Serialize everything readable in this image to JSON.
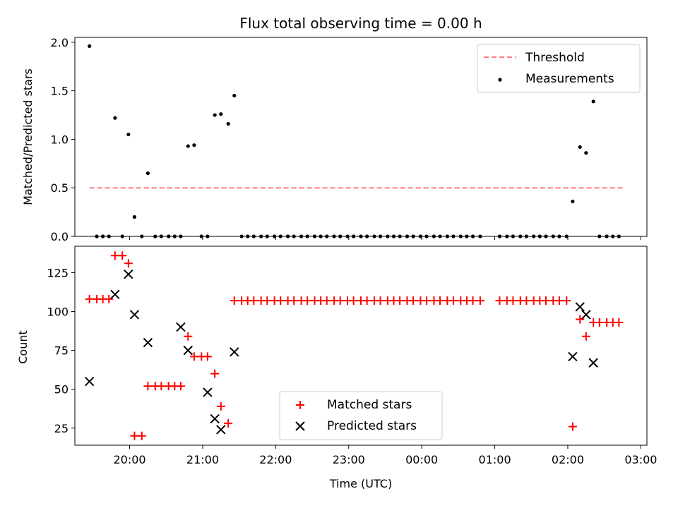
{
  "chart_data": [
    {
      "type": "scatter",
      "title": "Flux total observing time = 0.00 h",
      "ylabel": "Matched/Predicted stars",
      "xlabel": "",
      "ylim": [
        0,
        2.05
      ],
      "yticks": [
        0.0,
        0.5,
        1.0,
        1.5,
        2.0
      ],
      "ytick_labels": [
        "0.0",
        "0.5",
        "1.0",
        "1.5",
        "2.0"
      ],
      "threshold": {
        "label": "Threshold",
        "value": 0.5,
        "x_start": "19:27",
        "x_end": "02:45",
        "color": "#ff7f7f"
      },
      "legend_position": "upper-right",
      "series": [
        {
          "name": "Measurements",
          "color": "#000000",
          "x": [
            "19:27",
            "19:33",
            "19:38",
            "19:43",
            "19:48",
            "19:54",
            "19:59",
            "20:04",
            "20:10",
            "20:15",
            "20:21",
            "20:26",
            "20:32",
            "20:37",
            "20:42",
            "20:48",
            "20:53",
            "20:59",
            "21:04",
            "21:10",
            "21:15",
            "21:21",
            "21:26",
            "21:32",
            "21:37",
            "21:42",
            "21:48",
            "21:53",
            "21:59",
            "22:04",
            "22:10",
            "22:15",
            "22:21",
            "22:26",
            "22:32",
            "22:37",
            "22:42",
            "22:48",
            "22:53",
            "22:59",
            "23:04",
            "23:10",
            "23:15",
            "23:21",
            "23:26",
            "23:32",
            "23:37",
            "23:42",
            "23:48",
            "23:53",
            "23:59",
            "00:04",
            "00:10",
            "00:15",
            "00:21",
            "00:26",
            "00:32",
            "00:37",
            "00:42",
            "00:48",
            "01:04",
            "01:10",
            "01:15",
            "01:21",
            "01:26",
            "01:32",
            "01:37",
            "01:42",
            "01:48",
            "01:53",
            "01:59",
            "02:04",
            "02:10",
            "02:15",
            "02:21",
            "02:26",
            "02:32",
            "02:37",
            "02:42"
          ],
          "y": [
            1.96,
            0,
            0,
            0,
            1.22,
            0,
            1.05,
            0.2,
            0,
            0.65,
            0,
            0,
            0,
            0,
            0,
            0.93,
            0.94,
            0,
            0,
            1.25,
            1.26,
            1.16,
            1.45,
            0,
            0,
            0,
            0,
            0,
            0,
            0,
            0,
            0,
            0,
            0,
            0,
            0,
            0,
            0,
            0,
            0,
            0,
            0,
            0,
            0,
            0,
            0,
            0,
            0,
            0,
            0,
            0,
            0,
            0,
            0,
            0,
            0,
            0,
            0,
            0,
            0,
            0,
            0,
            0,
            0,
            0,
            0,
            0,
            0,
            0,
            0,
            0,
            0.36,
            0.92,
            0.86,
            1.39,
            0,
            0,
            0,
            0
          ]
        }
      ]
    },
    {
      "type": "scatter",
      "title": "",
      "ylabel": "Count",
      "xlabel": "Time (UTC)",
      "ylim": [
        14,
        142
      ],
      "yticks": [
        25,
        50,
        75,
        100,
        125
      ],
      "ytick_labels": [
        "25",
        "50",
        "75",
        "100",
        "125"
      ],
      "xlim": [
        "19:15",
        "03:05"
      ],
      "xticks": [
        "20:00",
        "21:00",
        "22:00",
        "23:00",
        "00:00",
        "01:00",
        "02:00",
        "03:00"
      ],
      "xtick_labels": [
        "20:00",
        "21:00",
        "22:00",
        "23:00",
        "00:00",
        "01:00",
        "02:00",
        "03:00"
      ],
      "legend_position": "lower-center",
      "series": [
        {
          "name": "Matched stars",
          "marker": "plus",
          "color": "#ff0000",
          "x": [
            "19:27",
            "19:33",
            "19:38",
            "19:43",
            "19:48",
            "19:54",
            "19:59",
            "20:04",
            "20:10",
            "20:15",
            "20:21",
            "20:26",
            "20:32",
            "20:37",
            "20:42",
            "20:48",
            "20:53",
            "20:59",
            "21:04",
            "21:10",
            "21:15",
            "21:21",
            "21:26",
            "21:32",
            "21:37",
            "21:42",
            "21:48",
            "21:53",
            "21:59",
            "22:04",
            "22:10",
            "22:15",
            "22:21",
            "22:26",
            "22:32",
            "22:37",
            "22:42",
            "22:48",
            "22:53",
            "22:59",
            "23:04",
            "23:10",
            "23:15",
            "23:21",
            "23:26",
            "23:32",
            "23:37",
            "23:42",
            "23:48",
            "23:53",
            "23:59",
            "00:04",
            "00:10",
            "00:15",
            "00:21",
            "00:26",
            "00:32",
            "00:37",
            "00:42",
            "00:48",
            "01:04",
            "01:10",
            "01:15",
            "01:21",
            "01:26",
            "01:32",
            "01:37",
            "01:42",
            "01:48",
            "01:53",
            "01:59",
            "02:04",
            "02:10",
            "02:15",
            "02:21",
            "02:26",
            "02:32",
            "02:37",
            "02:42"
          ],
          "y": [
            108,
            108,
            108,
            108,
            136,
            136,
            131,
            20,
            20,
            52,
            52,
            52,
            52,
            52,
            52,
            84,
            71,
            71,
            71,
            60,
            39,
            28,
            107,
            107,
            107,
            107,
            107,
            107,
            107,
            107,
            107,
            107,
            107,
            107,
            107,
            107,
            107,
            107,
            107,
            107,
            107,
            107,
            107,
            107,
            107,
            107,
            107,
            107,
            107,
            107,
            107,
            107,
            107,
            107,
            107,
            107,
            107,
            107,
            107,
            107,
            107,
            107,
            107,
            107,
            107,
            107,
            107,
            107,
            107,
            107,
            107,
            26,
            95,
            84,
            93,
            93,
            93,
            93,
            93
          ]
        },
        {
          "name": "Predicted stars",
          "marker": "x",
          "color": "#000000",
          "x": [
            "19:27",
            "19:48",
            "19:59",
            "20:04",
            "20:15",
            "20:42",
            "20:48",
            "21:04",
            "21:10",
            "21:15",
            "21:26",
            "02:04",
            "02:10",
            "02:15",
            "02:21"
          ],
          "y": [
            55,
            111,
            124,
            98,
            80,
            90,
            75,
            48,
            31,
            24,
            74,
            71,
            103,
            98,
            67
          ]
        }
      ]
    }
  ]
}
